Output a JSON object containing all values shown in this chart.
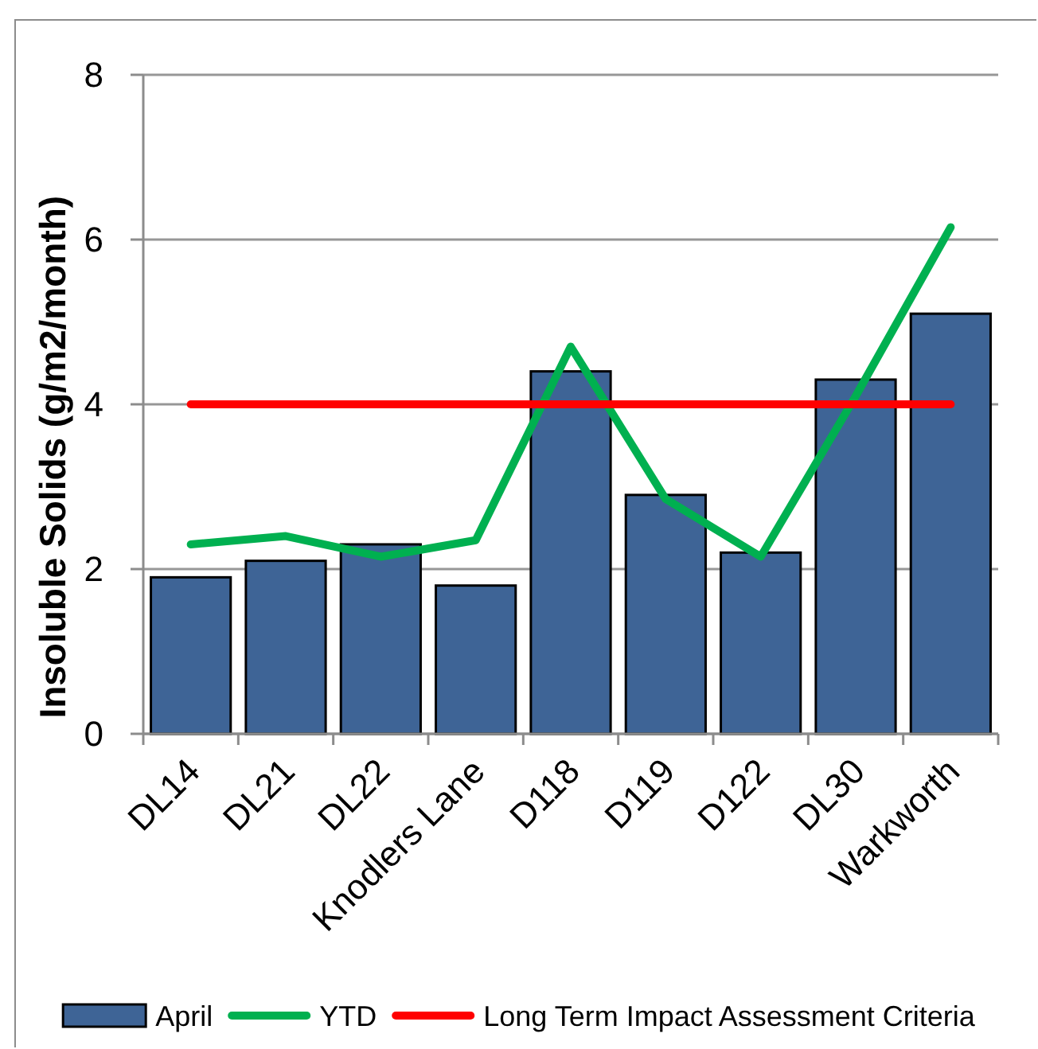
{
  "chart_data": {
    "type": "bar",
    "categories": [
      "DL14",
      "DL21",
      "DL22",
      "Knodlers Lane",
      "D118",
      "D119",
      "D122",
      "DL30",
      "Warkworth"
    ],
    "series": [
      {
        "name": "April",
        "color": "#3e6496",
        "values": [
          1.9,
          2.1,
          2.3,
          1.8,
          4.4,
          2.9,
          2.2,
          4.3,
          5.1
        ]
      },
      {
        "name": "YTD",
        "type": "line",
        "color": "#00b050",
        "values": [
          2.3,
          2.4,
          2.15,
          2.35,
          4.7,
          2.85,
          2.15,
          4.1,
          6.15
        ]
      },
      {
        "name": "Long Term Impact Assessment Criteria",
        "type": "line",
        "color": "#ff0000",
        "values": [
          4,
          4,
          4,
          4,
          4,
          4,
          4,
          4,
          4
        ]
      }
    ],
    "ylabel": "Insoluble Solids (g/m2/month)",
    "ylim": [
      0,
      8
    ],
    "yticks": [
      0,
      2,
      4,
      6,
      8
    ],
    "grid": "y",
    "legend": "bottom"
  }
}
